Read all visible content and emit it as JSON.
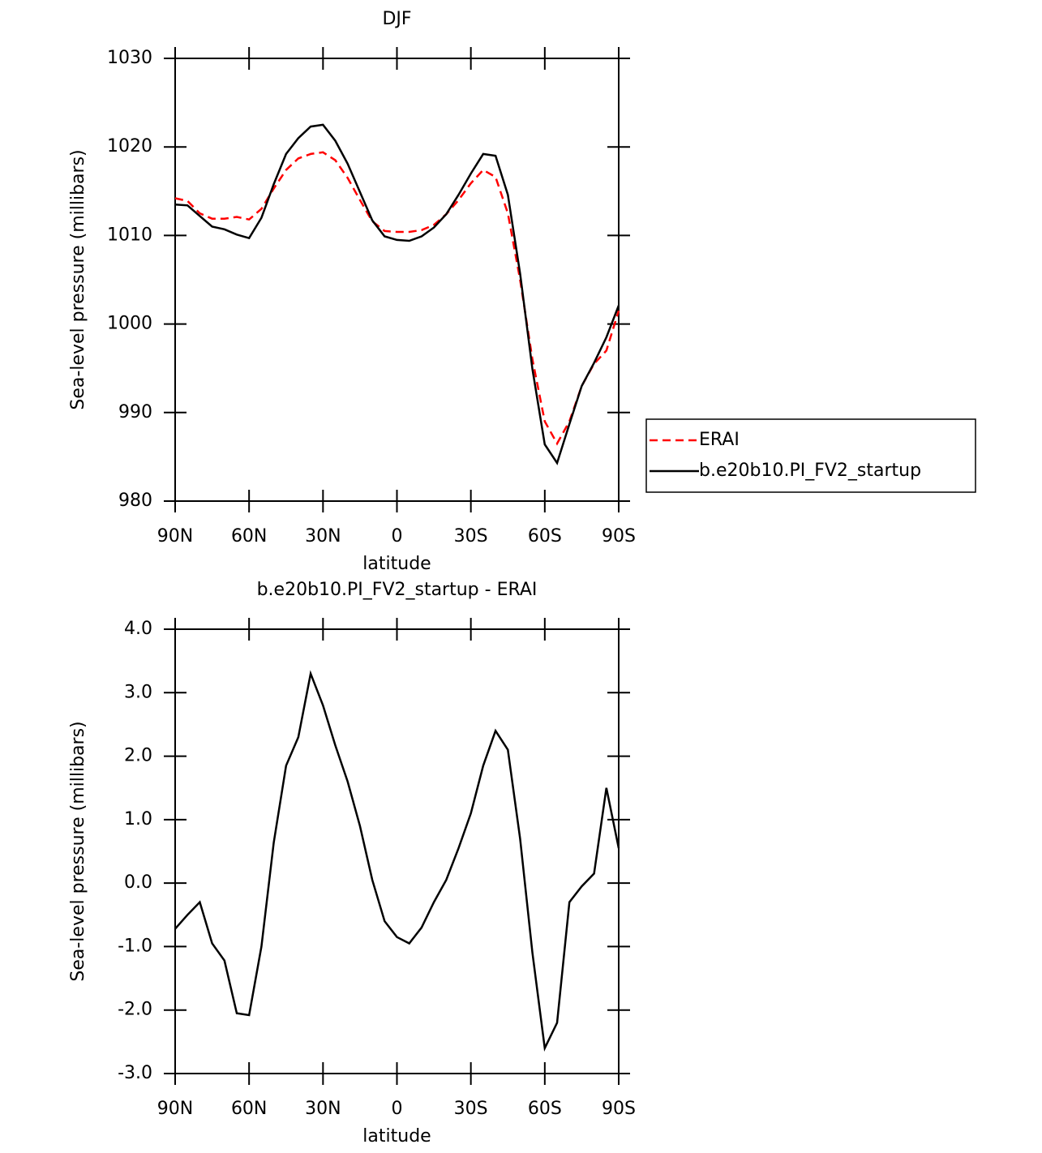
{
  "chart_data": [
    {
      "type": "line",
      "title": "DJF",
      "x_label": "latitude",
      "y_label": "Sea-level pressure (millibars)",
      "x": [
        90,
        85,
        80,
        75,
        70,
        65,
        60,
        55,
        50,
        45,
        40,
        35,
        30,
        25,
        20,
        15,
        10,
        5,
        0,
        -5,
        -10,
        -15,
        -20,
        -25,
        -30,
        -35,
        -40,
        -45,
        -50,
        -55,
        -60,
        -65,
        -70,
        -75,
        -80,
        -85,
        -90
      ],
      "xlim": [
        90,
        -90
      ],
      "xticks": [
        {
          "value": 90,
          "label": "90N"
        },
        {
          "value": 60,
          "label": "60N"
        },
        {
          "value": 30,
          "label": "30N"
        },
        0,
        {
          "value": -30,
          "label": "30S"
        },
        {
          "value": -60,
          "label": "60S"
        },
        {
          "value": -90,
          "label": "90S"
        }
      ],
      "ylim": [
        980,
        1030
      ],
      "yticks": [
        980,
        990,
        1000,
        1010,
        1020,
        1030
      ],
      "legend": "outside-right",
      "series": [
        {
          "name": "ERAI",
          "color": "#ff0000",
          "linestyle": "dashed",
          "values": [
            1014.2,
            1013.9,
            1012.5,
            1011.9,
            1011.9,
            1012.1,
            1011.8,
            1013.0,
            1015.3,
            1017.4,
            1018.7,
            1019.2,
            1019.4,
            1018.5,
            1016.5,
            1014.0,
            1011.6,
            1010.5,
            1010.4,
            1010.4,
            1010.6,
            1011.2,
            1012.4,
            1014.0,
            1015.9,
            1017.4,
            1016.6,
            1012.5,
            1005.0,
            996.0,
            989.0,
            986.5,
            989.0,
            993.0,
            995.5,
            997.0,
            1001.5
          ]
        },
        {
          "name": "b.e20b10.PI_FV2_startup",
          "color": "#000000",
          "linestyle": "solid",
          "values": [
            1013.5,
            1013.4,
            1012.2,
            1011.0,
            1010.7,
            1010.1,
            1009.7,
            1012.0,
            1015.8,
            1019.2,
            1021.0,
            1022.3,
            1022.5,
            1020.7,
            1018.1,
            1014.9,
            1011.7,
            1009.9,
            1009.5,
            1009.4,
            1009.9,
            1010.9,
            1012.4,
            1014.6,
            1017.0,
            1019.2,
            1019.0,
            1014.6,
            1005.7,
            994.9,
            986.4,
            984.3,
            988.7,
            993.0,
            995.6,
            998.5,
            1002.1
          ]
        }
      ]
    },
    {
      "type": "line",
      "title": "b.e20b10.PI_FV2_startup - ERAI",
      "x_label": "latitude",
      "y_label": "Sea-level pressure (millibars)",
      "x": [
        90,
        85,
        80,
        75,
        70,
        65,
        60,
        55,
        50,
        45,
        40,
        35,
        30,
        25,
        20,
        15,
        10,
        5,
        0,
        -5,
        -10,
        -15,
        -20,
        -25,
        -30,
        -35,
        -40,
        -45,
        -50,
        -55,
        -60,
        -65,
        -70,
        -75,
        -80,
        -85,
        -90
      ],
      "xlim": [
        90,
        -90
      ],
      "xticks": [
        {
          "value": 90,
          "label": "90N"
        },
        {
          "value": 60,
          "label": "60N"
        },
        {
          "value": 30,
          "label": "30N"
        },
        0,
        {
          "value": -30,
          "label": "30S"
        },
        {
          "value": -60,
          "label": "60S"
        },
        {
          "value": -90,
          "label": "90S"
        }
      ],
      "ylim": [
        -3,
        4
      ],
      "yticks": [
        {
          "value": -3,
          "label": "-3.0"
        },
        {
          "value": -2,
          "label": "-2.0"
        },
        {
          "value": -1,
          "label": "-1.0"
        },
        {
          "value": 0,
          "label": "0.0"
        },
        {
          "value": 1,
          "label": "1.0"
        },
        {
          "value": 2,
          "label": "2.0"
        },
        {
          "value": 3,
          "label": "3.0"
        },
        {
          "value": 4,
          "label": "4.0"
        }
      ],
      "series": [
        {
          "color": "#000000",
          "linestyle": "solid",
          "values": [
            -0.72,
            -0.5,
            -0.3,
            -0.95,
            -1.22,
            -2.05,
            -2.08,
            -1.0,
            0.64,
            1.85,
            2.3,
            3.3,
            2.8,
            2.17,
            1.6,
            0.9,
            0.05,
            -0.6,
            -0.85,
            -0.95,
            -0.7,
            -0.3,
            0.05,
            0.55,
            1.1,
            1.85,
            2.4,
            2.1,
            0.7,
            -1.1,
            -2.6,
            -2.2,
            -0.3,
            -0.05,
            0.15,
            1.5,
            0.55
          ]
        }
      ]
    }
  ]
}
